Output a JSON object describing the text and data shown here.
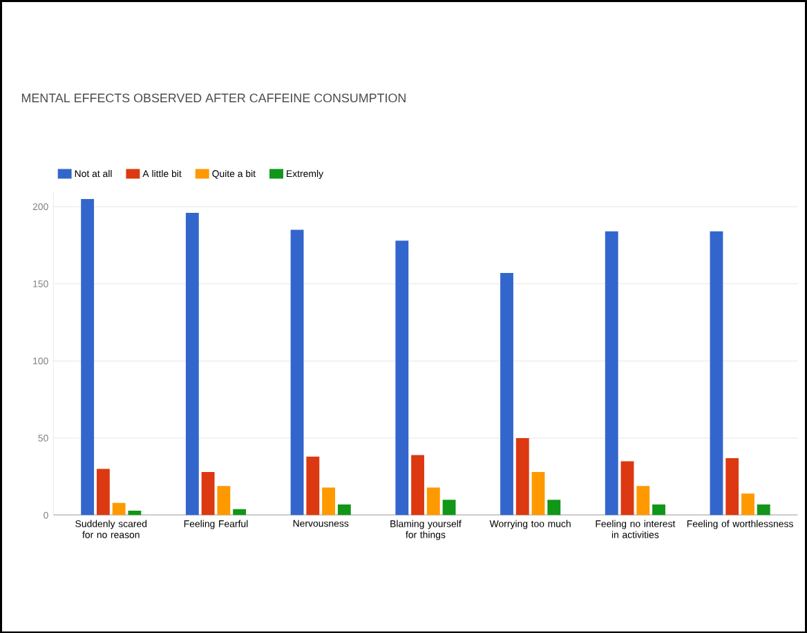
{
  "chart_data": {
    "type": "bar",
    "title": "MENTAL EFFECTS OBSERVED AFTER CAFFEINE CONSUMPTION",
    "categories": [
      "Suddenly scared for no reason",
      "Feeling Fearful",
      "Nervousness",
      "Blaming yourself for things",
      "Worrying too much",
      "Feeling no interest in activities",
      "Feeling of worthlessness"
    ],
    "series": [
      {
        "name": "Not at all",
        "color": "#3366cc",
        "values": [
          205,
          196,
          185,
          178,
          157,
          184,
          184
        ]
      },
      {
        "name": "A little bit",
        "color": "#dc3912",
        "values": [
          30,
          28,
          38,
          39,
          50,
          35,
          37
        ]
      },
      {
        "name": "Quite a bit",
        "color": "#ff9900",
        "values": [
          8,
          19,
          18,
          18,
          28,
          19,
          14
        ]
      },
      {
        "name": "Extremly",
        "color": "#109618",
        "values": [
          3,
          4,
          7,
          10,
          10,
          7,
          7
        ]
      }
    ],
    "ylim": [
      0,
      210
    ],
    "yticks": [
      0,
      50,
      100,
      150,
      200
    ],
    "grid": "y",
    "legend": "top left"
  }
}
